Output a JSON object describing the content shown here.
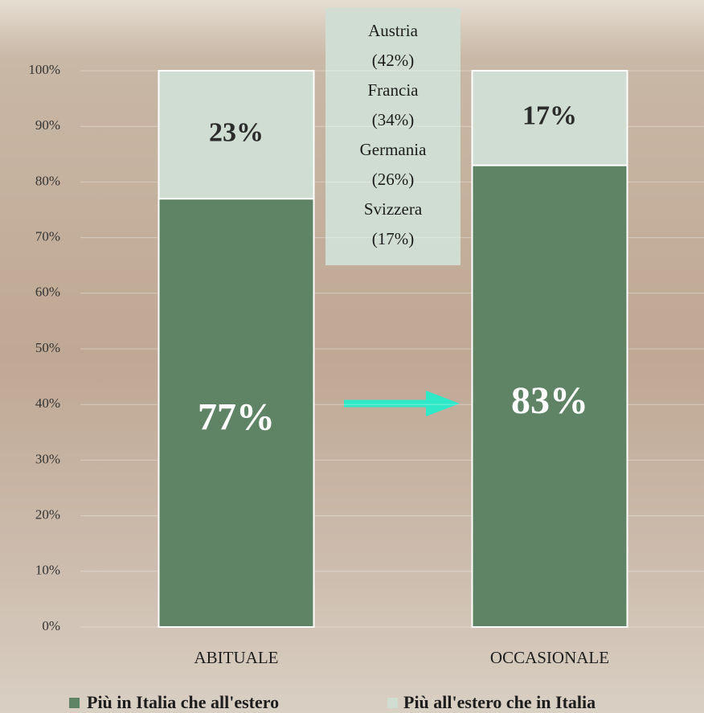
{
  "chart_data": {
    "type": "stacked-bar",
    "categories": [
      "ABITUALE",
      "OCCASIONALE"
    ],
    "series": [
      {
        "name": "Più in Italia che all'estero",
        "color": "#5f8465",
        "values": [
          77,
          83
        ],
        "value_labels": [
          "77%",
          "83%"
        ]
      },
      {
        "name": "Più all'estero che in Italia",
        "color": "#cfddd2",
        "values": [
          23,
          17
        ],
        "value_labels": [
          "23%",
          "17%"
        ]
      }
    ],
    "annotation": [
      "Austria",
      "(42%)",
      "Francia",
      "(34%)",
      "Germania",
      "(26%)",
      "Svizzera",
      "(17%)"
    ],
    "ylim": [
      0,
      100
    ],
    "yticks": [
      {
        "value": 0,
        "label": "0%"
      },
      {
        "value": 10,
        "label": "10%"
      },
      {
        "value": 20,
        "label": "20%"
      },
      {
        "value": 30,
        "label": "30%"
      },
      {
        "value": 40,
        "label": "40%"
      },
      {
        "value": 50,
        "label": "50%"
      },
      {
        "value": 60,
        "label": "60%"
      },
      {
        "value": 70,
        "label": "70%"
      },
      {
        "value": 80,
        "label": "80%"
      },
      {
        "value": 90,
        "label": "90%"
      },
      {
        "value": 100,
        "label": "100%"
      }
    ],
    "grid": true,
    "legend": "bottom"
  }
}
